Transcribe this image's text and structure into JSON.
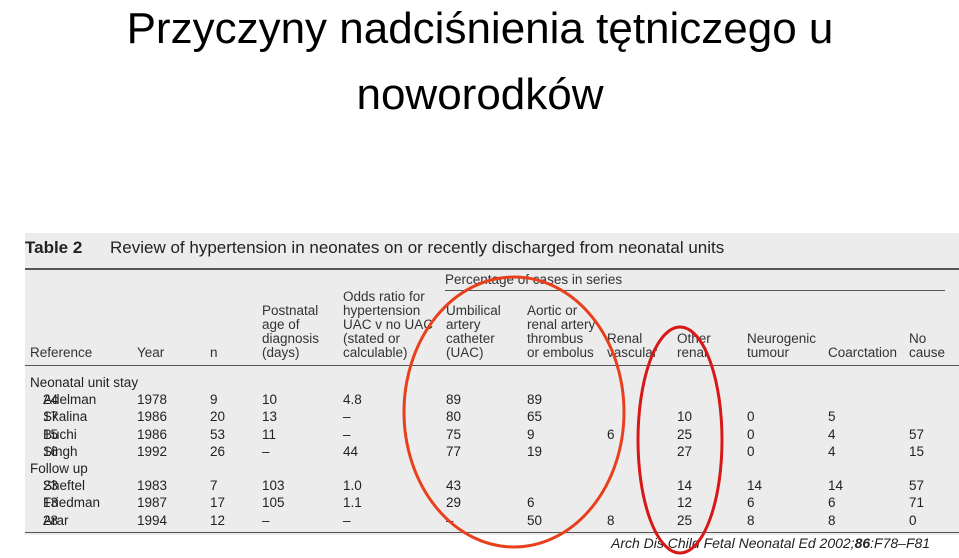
{
  "title": "Przyczyny nadciśnienia tętniczego u noworodków",
  "table": {
    "label": "Table 2",
    "caption": "Review of hypertension in neonates on or recently discharged from neonatal units",
    "group_header": "Percentage of cases in series",
    "columns": [
      "Reference",
      "Year",
      "n",
      "Postnatal\nage of\ndiagnosis\n(days)",
      "Odds ratio for\nhypertension\nUAC v no UAC\n(stated or\ncalculable)",
      "Umbilical\nartery\ncatheter\n(UAC)",
      "Aortic or\nrenal artery\nthrombus\nor embolus",
      "Renal\nvascular",
      "Other\nrenal",
      "Neurogenic\ntumour",
      "Coarctation",
      "No\ncause"
    ],
    "sections": [
      {
        "name": "Neonatal unit stay",
        "rows": [
          {
            "name": "Adelman",
            "ref": "24",
            "cells": [
              "1978",
              "9",
              "10",
              "4.8",
              "89",
              "89",
              null,
              null,
              null,
              null,
              null
            ]
          },
          {
            "name": "Skalina",
            "ref": "17",
            "cells": [
              "1986",
              "20",
              "13",
              "–",
              "80",
              "65",
              null,
              "10",
              "0",
              "5",
              null
            ]
          },
          {
            "name": "Buchi",
            "ref": "15",
            "cells": [
              "1986",
              "53",
              "11",
              "–",
              "75",
              "9",
              "6",
              "25",
              "0",
              "4",
              "57"
            ]
          },
          {
            "name": "Singh",
            "ref": "16",
            "cells": [
              "1992",
              "26",
              "–",
              "44",
              "77",
              "19",
              null,
              "27",
              "0",
              "4",
              "15"
            ]
          }
        ]
      },
      {
        "name": "Follow up",
        "rows": [
          {
            "name": "Sheftel",
            "ref": "23",
            "cells": [
              "1983",
              "7",
              "103",
              "1.0",
              "43",
              null,
              null,
              "14",
              "14",
              "14",
              "57"
            ]
          },
          {
            "name": "Friedman",
            "ref": "13",
            "cells": [
              "1987",
              "17",
              "105",
              "1.1",
              "29",
              "6",
              null,
              "12",
              "6",
              "6",
              "71"
            ]
          },
          {
            "name": "Arar",
            "ref": "28",
            "cells": [
              "1994",
              "12",
              "–",
              "–",
              "–",
              "50",
              "8",
              "25",
              "8",
              "8",
              "0"
            ]
          }
        ]
      }
    ],
    "source": {
      "pre": "Arch Dis Child Fetal Neonatal Ed 2002;",
      "bold": "86",
      "post": ":F78–F81"
    }
  }
}
